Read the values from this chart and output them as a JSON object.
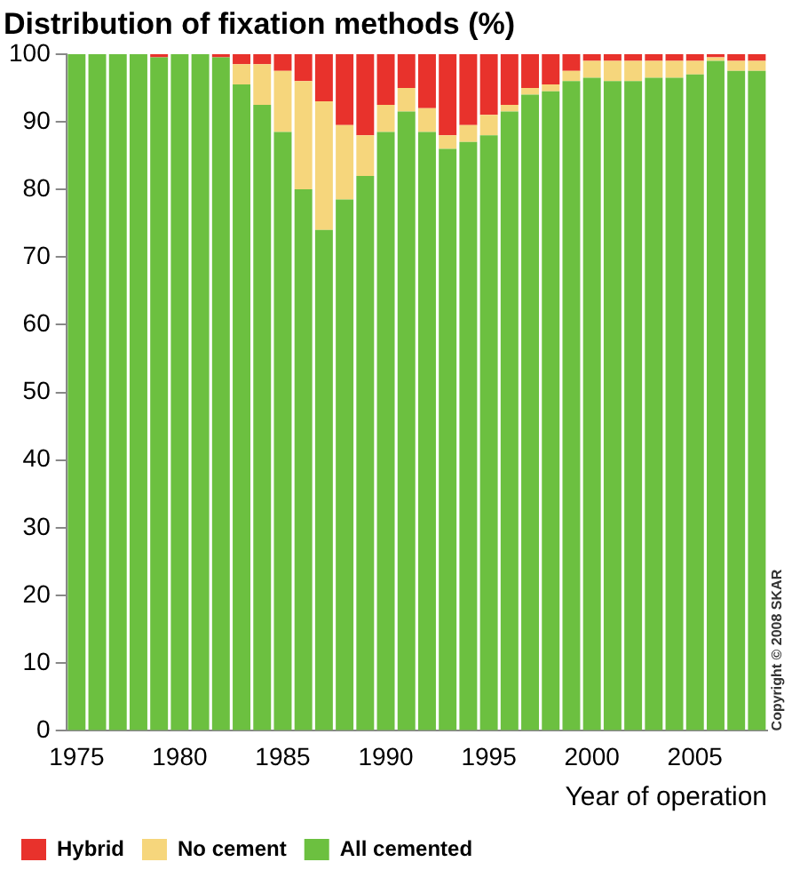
{
  "chart_data": {
    "type": "bar",
    "stacked": true,
    "title": "Distribution of fixation methods (%)",
    "xlabel": "Year of operation",
    "categories": [
      "1975",
      null,
      null,
      null,
      null,
      "1980",
      null,
      null,
      null,
      null,
      "1985",
      null,
      null,
      null,
      null,
      "1990",
      null,
      null,
      null,
      null,
      "1995",
      null,
      null,
      null,
      null,
      "2000",
      null,
      null,
      null,
      null,
      "2005",
      null,
      null,
      null
    ],
    "series": [
      {
        "name": "All cemented",
        "color": "#6cc040",
        "values": [
          100,
          100,
          100,
          100,
          99.5,
          100,
          100,
          99.5,
          95.5,
          92.5,
          88.5,
          80,
          74,
          78.5,
          82,
          88.5,
          91.5,
          88.5,
          86,
          87,
          88,
          91.5,
          94,
          94.5,
          96,
          96.5,
          96,
          96,
          96.5,
          96.5,
          97,
          99,
          97.5,
          97.5
        ]
      },
      {
        "name": "No cement",
        "color": "#f6d67c",
        "values": [
          0,
          0,
          0,
          0,
          0,
          0,
          0,
          0,
          3,
          6,
          9,
          16,
          19,
          11,
          6,
          4,
          3.5,
          3.5,
          2,
          2.5,
          3,
          1,
          1,
          1,
          1.5,
          2.5,
          3,
          3,
          2.5,
          2.5,
          2,
          0.5,
          1.5,
          1.5
        ]
      },
      {
        "name": "Hybrid",
        "color": "#e8322c",
        "values": [
          0,
          0,
          0,
          0,
          0.5,
          0,
          0,
          0.5,
          1.5,
          1.5,
          2.5,
          4,
          7,
          10.5,
          12,
          7.5,
          5,
          8,
          12,
          10.5,
          9,
          7.5,
          5,
          4.5,
          2.5,
          1,
          1,
          1,
          1,
          1,
          1,
          0.5,
          1,
          1
        ]
      }
    ],
    "ylim": [
      0,
      100
    ],
    "yticks": [
      0,
      10,
      20,
      30,
      40,
      50,
      60,
      70,
      80,
      90,
      100
    ],
    "grid": false,
    "legend": "bottom left",
    "annotations": [
      "Copyright © 2008 SKAR"
    ]
  }
}
